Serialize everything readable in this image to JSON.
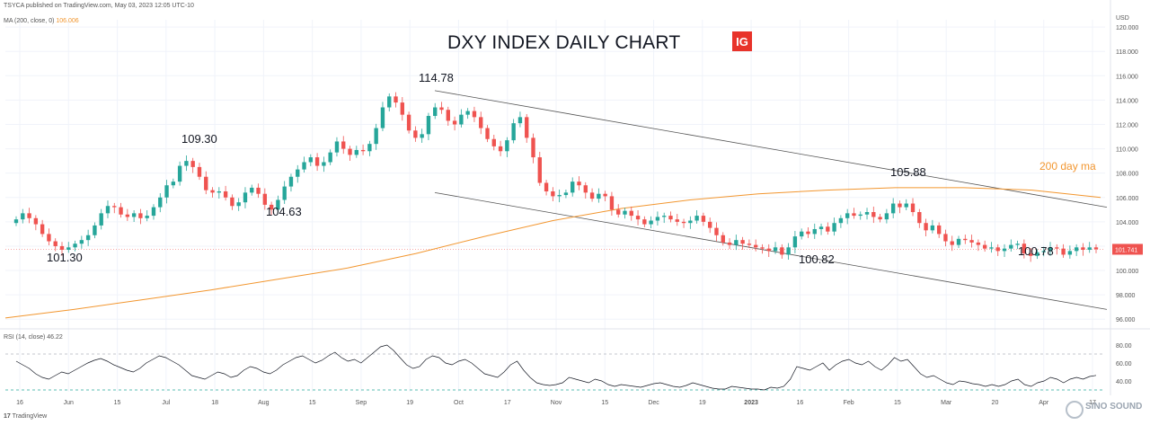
{
  "header": {
    "publisher": "TSYCA published on TradingView.com, May 03, 2023 12:05 UTC-10",
    "ma_legend_prefix": "MA (200, close, 0)",
    "ma_legend_value": "106.006",
    "rsi_legend": "RSI (14, close) 46.22"
  },
  "footer": {
    "brand": "TradingView"
  },
  "watermark": {
    "text": "SINO SOUND"
  },
  "logo": {
    "text": "IG",
    "color": "#e8332a"
  },
  "colors": {
    "up": "#26a69a",
    "down": "#ef5350",
    "ma": "#f2962f",
    "price_tag": "#ef5350",
    "channel": "#555555",
    "rsi_line": "#131722"
  },
  "chart_data": [
    {
      "type": "candlestick",
      "title": "DXY INDEX DAILY CHART",
      "currency_label": "USD",
      "y_ticks": [
        "96.000",
        "98.000",
        "100.000",
        "102.000",
        "104.000",
        "106.000",
        "108.000",
        "110.000",
        "112.000",
        "114.000",
        "116.000",
        "118.000",
        "120.000"
      ],
      "ylim": [
        95.5,
        120.6
      ],
      "x_ticks": [
        "16",
        "Jun",
        "15",
        "Jul",
        "18",
        "Aug",
        "15",
        "Sep",
        "19",
        "Oct",
        "17",
        "Nov",
        "15",
        "Dec",
        "19",
        "2023",
        "16",
        "Feb",
        "15",
        "Mar",
        "20",
        "Apr",
        "17"
      ],
      "last_price": "101.741",
      "annotations": [
        "101.30",
        "109.30",
        "104.63",
        "114.78",
        "100.82",
        "105.88",
        "100.78"
      ],
      "ma_label": "200 day ma",
      "channel_upper": [
        [
          114.78,
          105.2
        ]
      ],
      "channel_lower": [
        [
          106.4,
          96.8
        ]
      ],
      "ma_200": [
        96.1,
        96.8,
        97.6,
        98.4,
        99.3,
        100.2,
        101.4,
        102.8,
        104.1,
        105.1,
        105.8,
        106.3,
        106.6,
        106.8,
        106.8,
        106.6,
        106.0
      ],
      "closes": [
        104.2,
        104.7,
        104.3,
        103.8,
        103.0,
        102.4,
        102.0,
        101.7,
        101.9,
        102.2,
        102.5,
        102.9,
        103.7,
        104.7,
        105.3,
        105.2,
        104.6,
        104.4,
        104.7,
        104.3,
        104.5,
        105.2,
        106.0,
        107.0,
        107.3,
        108.6,
        109.0,
        108.5,
        107.7,
        106.6,
        106.4,
        106.5,
        106.0,
        105.3,
        105.6,
        106.4,
        106.8,
        106.3,
        105.4,
        105.0,
        105.8,
        106.9,
        107.7,
        108.3,
        108.9,
        109.3,
        108.6,
        108.9,
        109.7,
        110.6,
        110.0,
        109.5,
        109.9,
        109.8,
        110.4,
        111.7,
        113.4,
        114.3,
        113.8,
        112.8,
        111.5,
        110.9,
        111.2,
        112.7,
        113.4,
        113.2,
        112.3,
        112.0,
        112.8,
        113.1,
        112.6,
        111.7,
        110.8,
        110.2,
        109.8,
        110.7,
        112.1,
        112.6,
        110.9,
        109.3,
        107.2,
        106.5,
        106.1,
        106.2,
        106.4,
        107.3,
        107.0,
        106.4,
        105.9,
        106.3,
        106.1,
        105.0,
        104.6,
        104.9,
        104.5,
        104.2,
        103.8,
        104.1,
        104.4,
        104.5,
        104.2,
        104.0,
        103.9,
        104.1,
        104.5,
        104.0,
        103.5,
        102.9,
        102.3,
        102.1,
        102.5,
        102.2,
        102.1,
        101.9,
        101.8,
        101.6,
        101.9,
        101.3,
        101.9,
        102.8,
        103.2,
        103.0,
        103.4,
        103.6,
        103.2,
        103.9,
        104.3,
        104.7,
        104.5,
        104.6,
        104.8,
        104.4,
        104.2,
        104.7,
        105.5,
        105.2,
        105.5,
        104.8,
        103.9,
        103.3,
        103.7,
        103.0,
        102.4,
        102.1,
        102.6,
        102.5,
        102.3,
        102.1,
        101.8,
        101.9,
        101.6,
        101.8,
        102.1,
        102.2,
        101.4,
        101.2,
        101.5,
        101.6,
        101.9,
        101.8,
        101.3,
        101.6,
        101.9,
        101.7,
        101.9,
        101.741
      ],
      "rsi": {
        "ylim": [
          28,
          86
        ],
        "y_ticks": [
          "40.00",
          "60.00",
          "80.00"
        ],
        "levels": [
          30,
          70
        ],
        "values": [
          62,
          58,
          54,
          48,
          44,
          42,
          46,
          50,
          48,
          52,
          56,
          60,
          63,
          65,
          62,
          58,
          55,
          52,
          50,
          54,
          60,
          64,
          68,
          66,
          62,
          58,
          52,
          46,
          44,
          42,
          46,
          50,
          48,
          44,
          46,
          52,
          56,
          54,
          50,
          48,
          52,
          58,
          62,
          66,
          68,
          64,
          60,
          63,
          68,
          72,
          66,
          62,
          64,
          60,
          66,
          72,
          78,
          80,
          74,
          66,
          58,
          54,
          56,
          64,
          68,
          66,
          60,
          58,
          62,
          64,
          60,
          54,
          48,
          46,
          44,
          50,
          58,
          62,
          52,
          44,
          38,
          36,
          35,
          36,
          38,
          44,
          42,
          40,
          38,
          42,
          40,
          36,
          34,
          36,
          35,
          34,
          33,
          35,
          37,
          38,
          36,
          34,
          33,
          35,
          38,
          36,
          34,
          32,
          31,
          31,
          34,
          33,
          32,
          31,
          31,
          30,
          33,
          32,
          34,
          42,
          56,
          54,
          52,
          56,
          60,
          52,
          58,
          62,
          64,
          60,
          58,
          62,
          56,
          52,
          58,
          66,
          62,
          64,
          56,
          48,
          44,
          46,
          42,
          38,
          36,
          40,
          39,
          37,
          36,
          34,
          36,
          34,
          36,
          40,
          42,
          36,
          34,
          38,
          40,
          44,
          42,
          38,
          42,
          44,
          42,
          45,
          46.22
        ]
      }
    }
  ]
}
